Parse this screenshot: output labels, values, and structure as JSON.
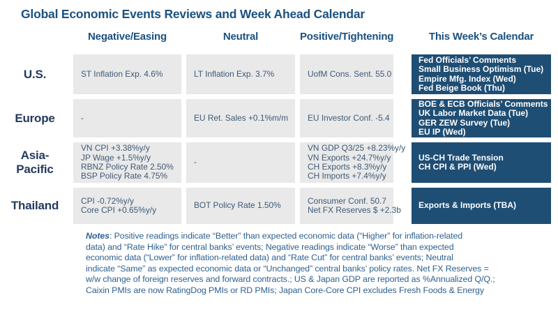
{
  "title": "Global Economic Events Reviews and Week Ahead Calendar",
  "columns": [
    "Negative/Easing",
    "Neutral",
    "Positive/Tightening",
    "This Week’s Calendar"
  ],
  "rows": [
    {
      "region": "U.S.",
      "negative": [
        "ST Inflation Exp. 4.6%"
      ],
      "neutral": [
        "LT Inflation Exp. 3.7%"
      ],
      "positive": [
        "UofM Cons. Sent. 55.0"
      ],
      "calendar": [
        "Fed Officials’ Comments",
        "Small Business Optimism (Tue)",
        "Empire Mfg. Index (Wed)",
        "Fed Beige Book (Thu)"
      ]
    },
    {
      "region": "Europe",
      "negative": [
        "-"
      ],
      "neutral": [
        "EU Ret. Sales +0.1%m/m"
      ],
      "positive": [
        "EU Investor Conf. -5.4"
      ],
      "calendar": [
        "BOE & ECB Officials’ Comments",
        "UK Labor Market Data (Tue)",
        "GER ZEW Survey (Tue)",
        "EU IP (Wed)"
      ]
    },
    {
      "region": "Asia-Pacific",
      "negative": [
        "VN CPI +3.38%y/y",
        "JP Wage +1.5%y/y",
        "RBNZ Policy Rate 2.50%",
        "BSP Policy Rate 4.75%"
      ],
      "neutral": [
        "-"
      ],
      "positive": [
        "VN GDP Q3/25 +8.23%y/y",
        "VN Exports +24.7%y/y",
        "CH Exports +8.3%y/y",
        "CH Imports +7.4%y/y"
      ],
      "calendar": [
        "US-CH Trade Tension",
        "CH CPI & PPI (Wed)"
      ]
    },
    {
      "region": "Thailand",
      "negative": [
        "CPI -0.72%y/y",
        "Core CPI +0.65%y/y"
      ],
      "neutral": [
        "BOT Policy Rate 1.50%"
      ],
      "positive": [
        "Consumer Conf. 50.7",
        "Net FX Reserves $ +2.3b"
      ],
      "calendar": [
        "Exports & Imports (TBA)"
      ]
    }
  ],
  "notes": {
    "label": "Notes",
    "lines": [
      "Positive readings indicate “Better” than expected economic data (“Higher” for inflation-related",
      "data) and “Rate Hike” for central banks’ events; Negative readings indicate “Worse” than expected",
      "economic data (“Lower” for inflation-related data) and “Rate Cut” for central banks’ events; Neutral",
      "indicate “Same” as expected economic data or “Unchanged” central banks’ policy rates. Net FX Reserves =",
      "w/w change of foreign reserves and forward contracts.; US & Japan GDP are reported as %Annualized Q/Q.;",
      "Caixin PMIs are now RatingDog PMIs or RD PMIs; Japan Core-Core CPI excludes Fresh Foods & Energy"
    ]
  },
  "colors": {
    "title_text": "#1b5180",
    "region_label_text": "#243a5e",
    "cell_background": "#e9e9e9",
    "cell_text": "#3e5a76",
    "calendar_cell_background": "#1f4e74",
    "calendar_cell_text": "#ffffff",
    "notes_text": "#2d6090"
  }
}
